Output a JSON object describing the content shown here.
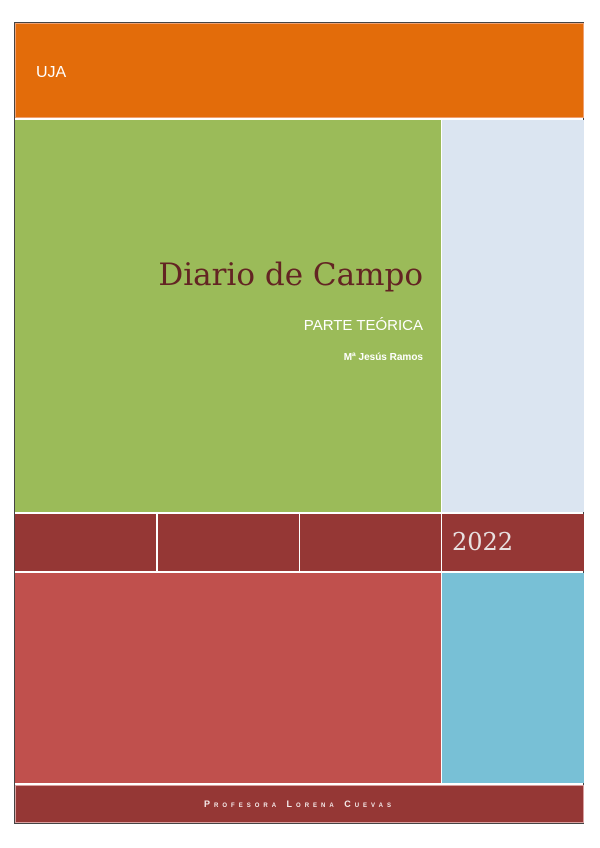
{
  "header": {
    "label": "UJA"
  },
  "cover": {
    "title": "Diario de Campo",
    "subtitle": "PARTE TEÓRICA",
    "author": "Mª Jesús Ramos",
    "year": "2022"
  },
  "footer": {
    "text": "Profesora Lorena Cuevas"
  },
  "colors": {
    "orange": "#e36c0a",
    "green": "#9bbb59",
    "light_blue": "#dbe5f1",
    "dark_red": "#953735",
    "red": "#c0504d",
    "cyan": "#78c0d6",
    "title": "#632423"
  }
}
